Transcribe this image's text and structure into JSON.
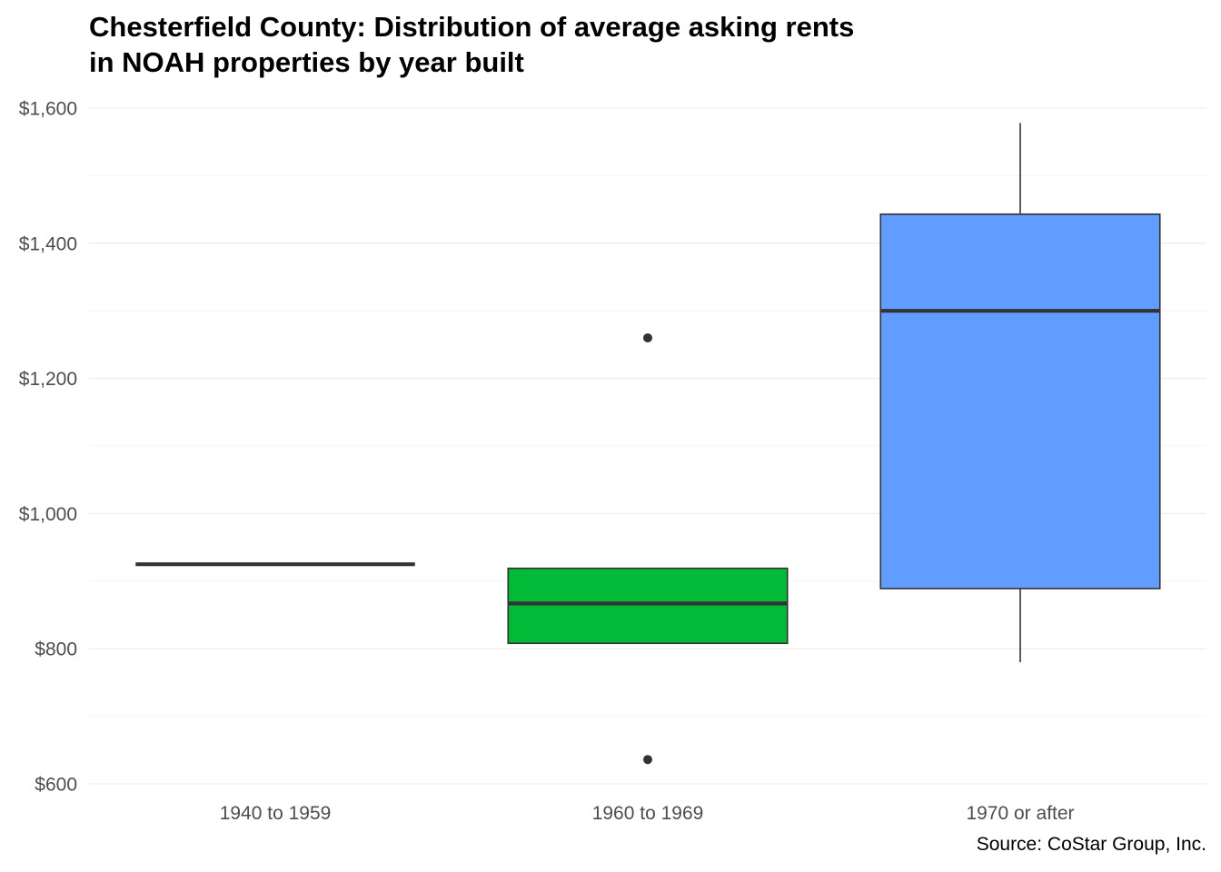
{
  "chart_data": {
    "type": "boxplot",
    "title_lines": [
      "Chesterfield County: Distribution of average asking rents",
      "in NOAH properties by year built"
    ],
    "xlabel": "",
    "ylabel": "",
    "caption": "Source: CoStar Group, Inc.",
    "ylim": [
      600,
      1600
    ],
    "yticks": [
      600,
      800,
      1000,
      1200,
      1400,
      1600
    ],
    "ytick_labels": [
      "$600",
      "$800",
      "$1,000",
      "$1,200",
      "$1,400",
      "$1,600"
    ],
    "grid": true,
    "legend": "none",
    "categories": [
      "1940 to 1959",
      "1960 to 1969",
      "1970 or after"
    ],
    "boxes": [
      {
        "category": "1940 to 1959",
        "whisker_low": 925,
        "q1": 925,
        "median": 925,
        "q3": 925,
        "whisker_high": 925,
        "outliers": [],
        "fill": "#F8766D"
      },
      {
        "category": "1960 to 1969",
        "whisker_low": 808,
        "q1": 808,
        "median": 867,
        "q3": 919,
        "whisker_high": 919,
        "outliers": [
          636,
          1260
        ],
        "fill": "#00BA38"
      },
      {
        "category": "1970 or after",
        "whisker_low": 780,
        "q1": 889,
        "median": 1300,
        "q3": 1443,
        "whisker_high": 1578,
        "outliers": [],
        "fill": "#619CFF"
      }
    ]
  }
}
